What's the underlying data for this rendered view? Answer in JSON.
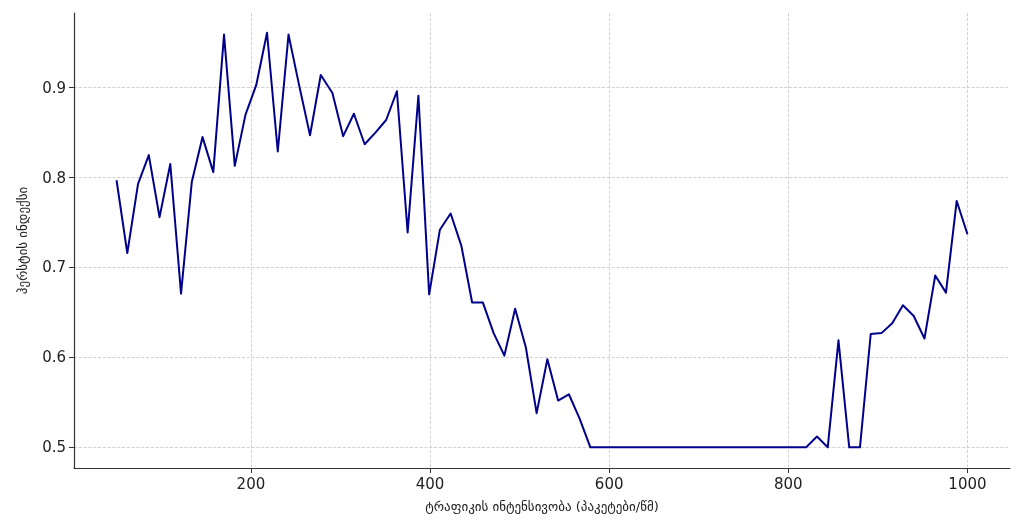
{
  "chart_data": {
    "type": "line",
    "xlabel": "ტრაფიკის ინტენსივობა (პაკეტები/წმ)",
    "ylabel": "ჰერსტის ინდექსი",
    "x": [
      50,
      62,
      74,
      86,
      98,
      110,
      122,
      134,
      146,
      158,
      170,
      182,
      194,
      206,
      218,
      230,
      242,
      254,
      266,
      278,
      291,
      303,
      315,
      327,
      339,
      351,
      363,
      375,
      387,
      399,
      411,
      423,
      435,
      447,
      459,
      471,
      483,
      495,
      507,
      519,
      531,
      543,
      555,
      567,
      579,
      591,
      603,
      615,
      627,
      639,
      651,
      663,
      675,
      687,
      699,
      711,
      723,
      735,
      747,
      759,
      772,
      784,
      796,
      808,
      820,
      832,
      844,
      856,
      868,
      880,
      892,
      904,
      916,
      928,
      940,
      952,
      964,
      976,
      988,
      1000
    ],
    "series": [
      {
        "color": "#00008b",
        "values": [
          0.797,
          0.716,
          0.793,
          0.825,
          0.756,
          0.815,
          0.671,
          0.795,
          0.845,
          0.806,
          0.959,
          0.813,
          0.87,
          0.903,
          0.961,
          0.829,
          0.959,
          0.902,
          0.847,
          0.914,
          0.894,
          0.846,
          0.871,
          0.837,
          0.85,
          0.864,
          0.896,
          0.739,
          0.891,
          0.67,
          0.742,
          0.76,
          0.724,
          0.661,
          0.661,
          0.627,
          0.602,
          0.654,
          0.611,
          0.538,
          0.598,
          0.552,
          0.559,
          0.532,
          0.5,
          0.5,
          0.5,
          0.5,
          0.5,
          0.5,
          0.5,
          0.5,
          0.5,
          0.5,
          0.5,
          0.5,
          0.5,
          0.5,
          0.5,
          0.5,
          0.5,
          0.5,
          0.5,
          0.5,
          0.5,
          0.512,
          0.5,
          0.619,
          0.5,
          0.5,
          0.626,
          0.627,
          0.638,
          0.658,
          0.646,
          0.621,
          0.691,
          0.672,
          0.774,
          0.737
        ]
      }
    ],
    "xlim": [
      2.5,
      1047.5
    ],
    "xticks": [
      200,
      400,
      600,
      800,
      1000
    ],
    "ylim": [
      0.477,
      0.983
    ],
    "yticks": [
      0.5,
      0.6,
      0.7,
      0.8,
      0.9
    ],
    "grid": true,
    "line_style": "solid",
    "marker": "none"
  }
}
